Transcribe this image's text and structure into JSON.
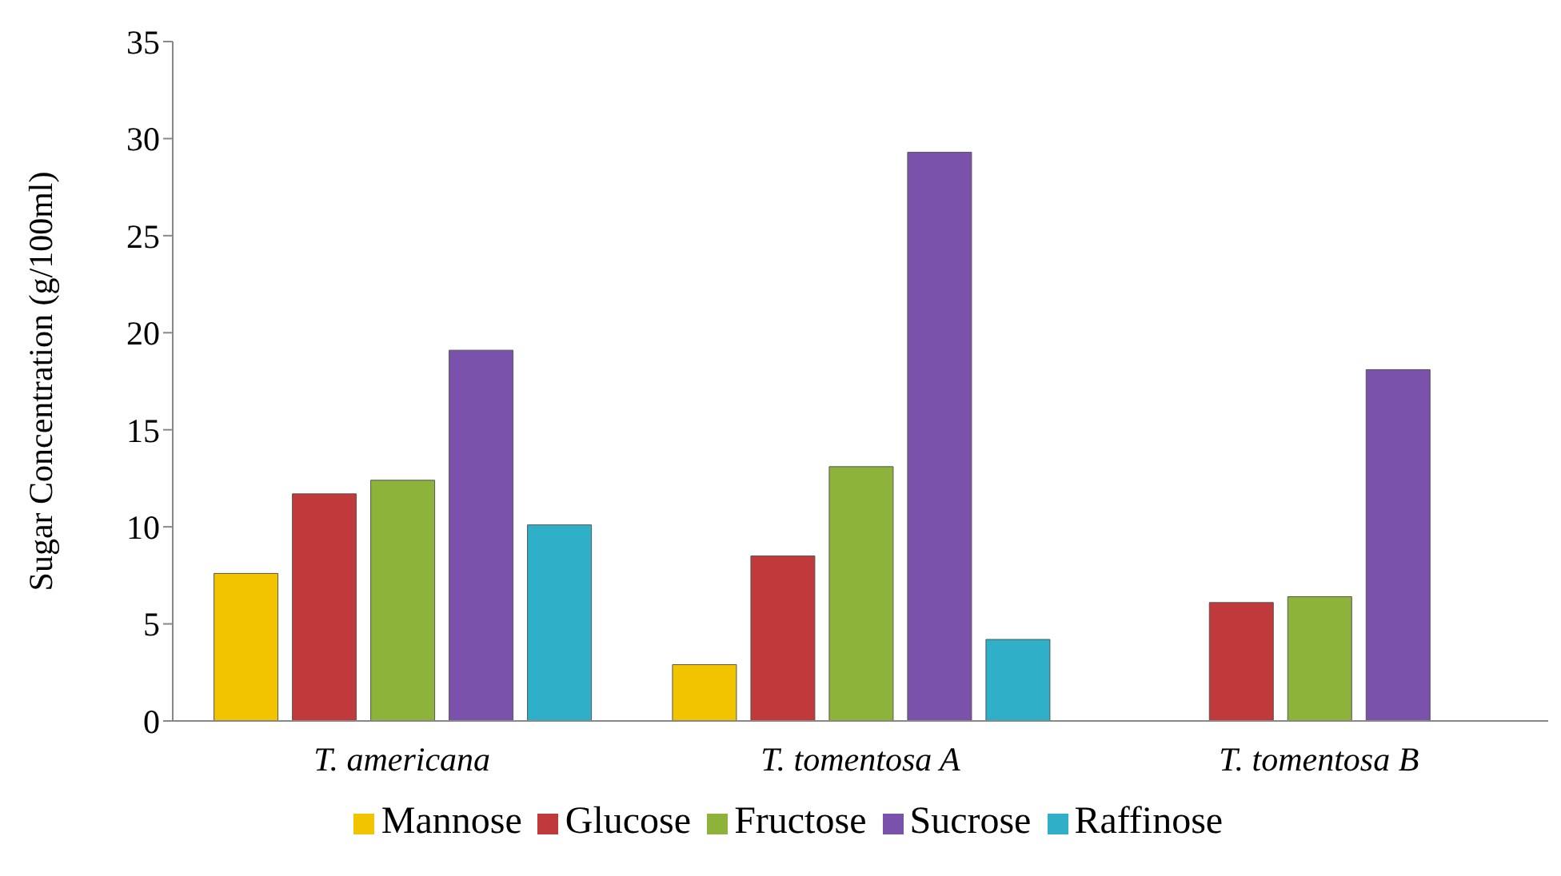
{
  "chart_data": {
    "type": "bar",
    "ylabel": "Sugar Concentration (g/100ml)",
    "categories": [
      "T. americana",
      "T. tomentosa A",
      "T. tomentosa B"
    ],
    "series": [
      {
        "name": "Mannose",
        "color": "#f2c400",
        "values": [
          7.6,
          2.9,
          null
        ]
      },
      {
        "name": "Glucose",
        "color": "#c0393b",
        "values": [
          11.7,
          8.5,
          6.1
        ]
      },
      {
        "name": "Fructose",
        "color": "#8db33a",
        "values": [
          12.4,
          13.1,
          6.4
        ]
      },
      {
        "name": "Sucrose",
        "color": "#7b52ab",
        "values": [
          19.1,
          29.3,
          18.1
        ]
      },
      {
        "name": "Raffinose",
        "color": "#2fb0c8",
        "values": [
          10.1,
          4.2,
          null
        ]
      }
    ],
    "ylim": [
      0,
      35
    ],
    "yticks": [
      0,
      5,
      10,
      15,
      20,
      25,
      30,
      35
    ],
    "grid": false,
    "legend": "bottom"
  }
}
